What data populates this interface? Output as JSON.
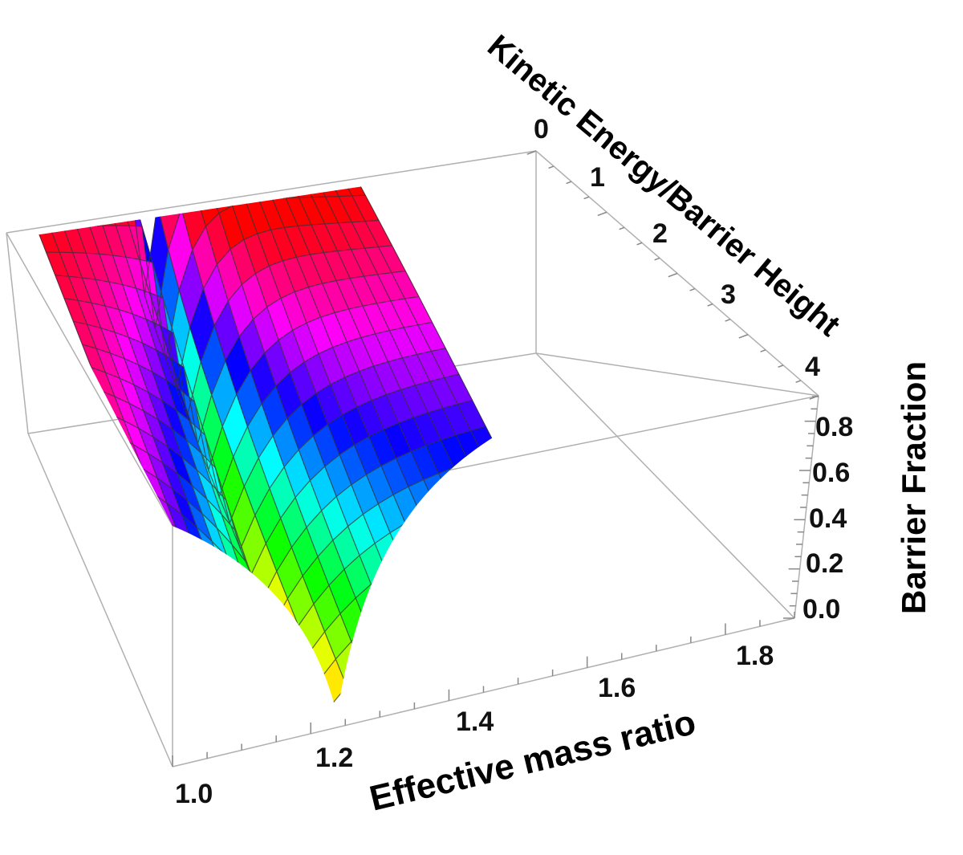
{
  "chart_data": {
    "type": "surface3d",
    "x_axis": {
      "label": "Effective mass ratio",
      "ticks": [
        "1.0",
        "1.2",
        "1.4",
        "1.6",
        "1.8"
      ],
      "range": [
        1.0,
        1.9
      ]
    },
    "y_axis": {
      "label": "Kinetic Energy/Barrier Height",
      "ticks": [
        "0",
        "1",
        "2",
        "3",
        "4"
      ],
      "range": [
        0,
        4
      ]
    },
    "z_axis": {
      "label": "Barrier Fraction",
      "ticks": [
        "0.0",
        "0.2",
        "0.4",
        "0.6",
        "0.8"
      ],
      "range": [
        0,
        0.9
      ]
    },
    "surface": {
      "description_values": [
        {
          "mass_ratio": 1.0,
          "energy_ratio": 0,
          "barrier_fraction": 0.85
        },
        {
          "mass_ratio": 1.0,
          "energy_ratio": 4,
          "barrier_fraction": 0.38
        },
        {
          "mass_ratio": 1.2,
          "energy_ratio": 4,
          "barrier_fraction": 0.0
        },
        {
          "mass_ratio": 1.55,
          "energy_ratio": 4,
          "barrier_fraction": 0.35
        },
        {
          "mass_ratio": 1.55,
          "energy_ratio": 0,
          "barrier_fraction": 0.8
        }
      ],
      "colormap": "hue"
    },
    "box": true,
    "grid": false,
    "legend": "none"
  }
}
